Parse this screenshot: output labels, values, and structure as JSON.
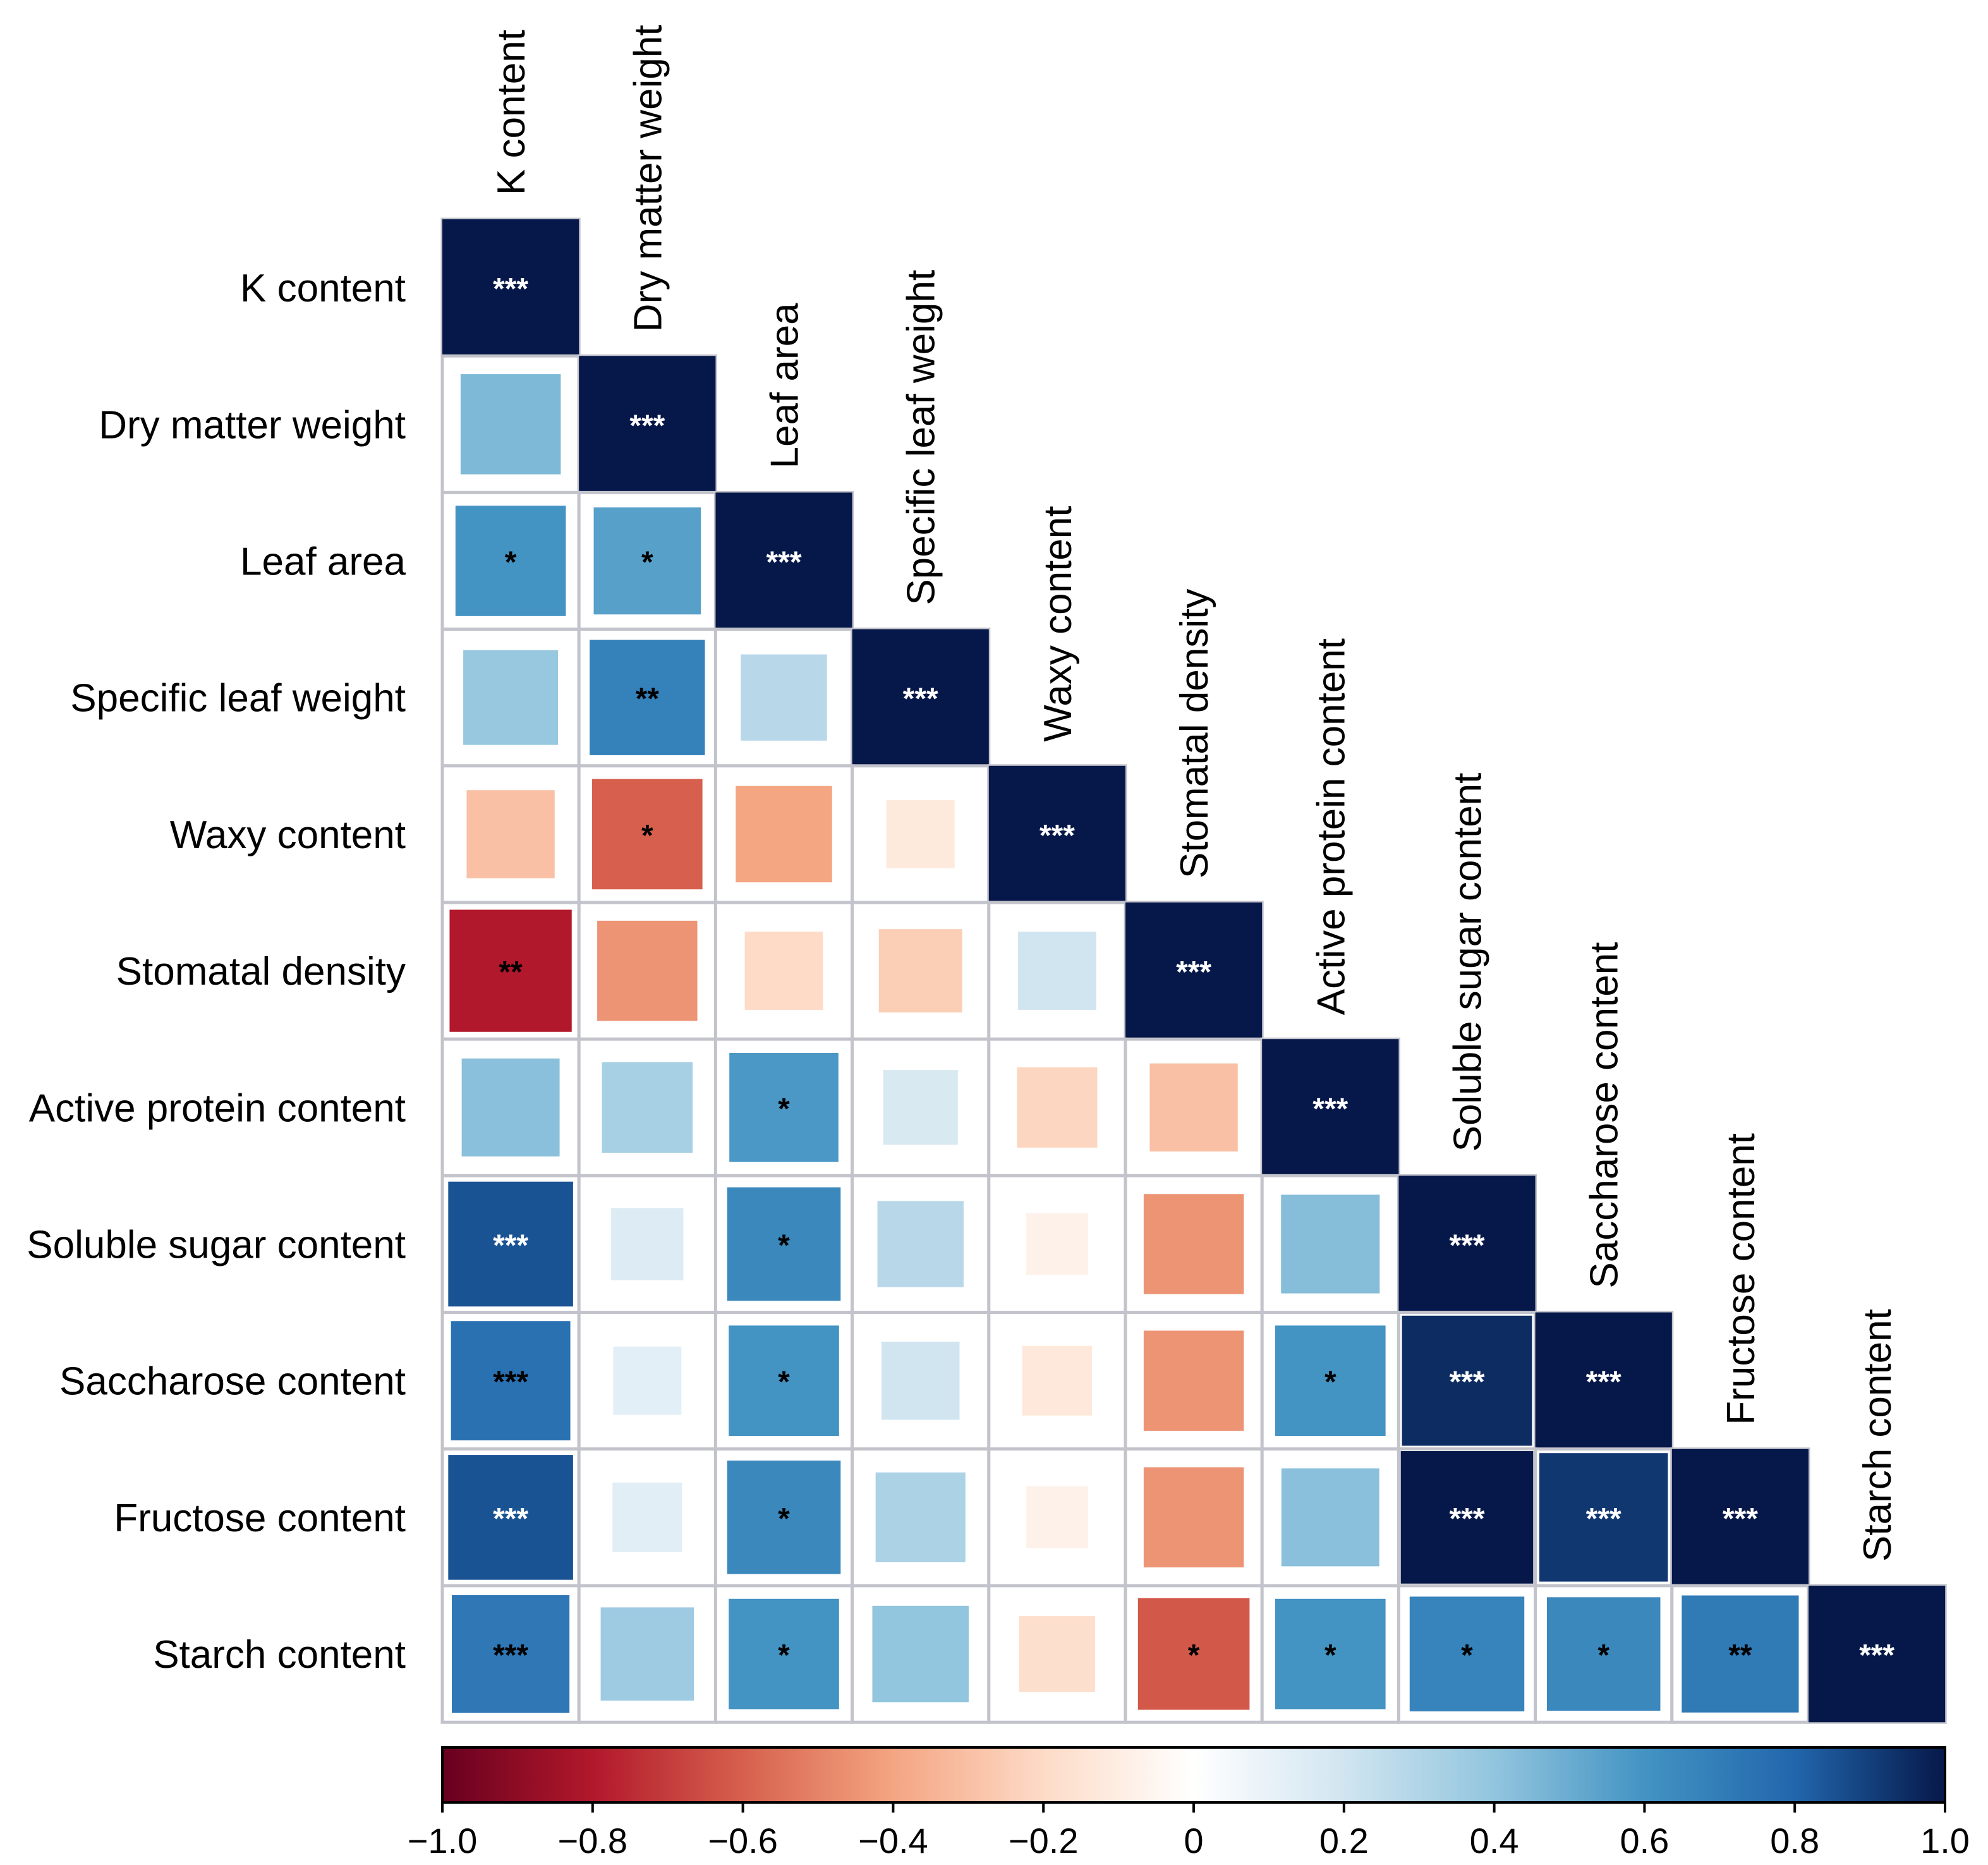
{
  "chart_data": {
    "type": "heatmap",
    "variables": [
      "K content",
      "Dry matter weight",
      "Leaf area",
      "Specific leaf weight",
      "Waxy content",
      "Stomatal density",
      "Active protein content",
      "Soluble sugar content",
      "Saccharose content",
      "Fructose content",
      "Starch content"
    ],
    "matrix": [
      [
        1.0
      ],
      [
        0.45,
        1.0
      ],
      [
        0.6,
        0.55,
        1.0
      ],
      [
        0.38,
        0.68,
        0.28,
        1.0
      ],
      [
        -0.3,
        -0.6,
        -0.4,
        -0.12,
        1.0
      ],
      [
        -0.8,
        -0.45,
        -0.2,
        -0.25,
        0.2,
        1.0
      ],
      [
        0.42,
        0.33,
        0.58,
        0.17,
        -0.22,
        -0.3,
        1.0
      ],
      [
        0.85,
        0.15,
        0.65,
        0.28,
        -0.08,
        -0.45,
        0.43,
        1.0
      ],
      [
        0.75,
        0.12,
        0.6,
        0.2,
        -0.13,
        -0.45,
        0.6,
        0.95,
        1.0
      ],
      [
        0.85,
        0.13,
        0.65,
        0.32,
        -0.08,
        -0.45,
        0.42,
        1.0,
        0.92,
        1.0
      ],
      [
        0.72,
        0.36,
        0.6,
        0.4,
        -0.18,
        -0.62,
        0.6,
        0.67,
        0.65,
        0.71,
        1.0
      ]
    ],
    "significance": [
      [
        "***"
      ],
      [
        "",
        "***"
      ],
      [
        "*",
        "*",
        "***"
      ],
      [
        "",
        "**",
        "",
        "***"
      ],
      [
        "",
        "*",
        "",
        "",
        "***"
      ],
      [
        "**",
        "",
        "",
        "",
        "",
        "***"
      ],
      [
        "",
        "",
        "*",
        "",
        "",
        "",
        "***"
      ],
      [
        "***",
        "",
        "*",
        "",
        "",
        "",
        "",
        "***"
      ],
      [
        "***",
        "",
        "*",
        "",
        "",
        "",
        "*",
        "***",
        "***"
      ],
      [
        "***",
        "",
        "*",
        "",
        "",
        "",
        "",
        "***",
        "***",
        "***"
      ],
      [
        "***",
        "",
        "*",
        "",
        "",
        "*",
        "*",
        "*",
        "*",
        "**",
        "***"
      ]
    ],
    "colorbar": {
      "min": -1.0,
      "max": 1.0,
      "ticks": [
        "−1.0",
        "−0.8",
        "−0.6",
        "−0.4",
        "−0.2",
        "0",
        "0.2",
        "0.4",
        "0.6",
        "0.8",
        "1.0"
      ],
      "colors": [
        "#67001f",
        "#b2182b",
        "#d6604d",
        "#f4a582",
        "#fddbc7",
        "#ffffff",
        "#d1e5f0",
        "#92c5de",
        "#4393c3",
        "#2166ac",
        "#053061"
      ],
      "dark_end": "#061849"
    }
  }
}
